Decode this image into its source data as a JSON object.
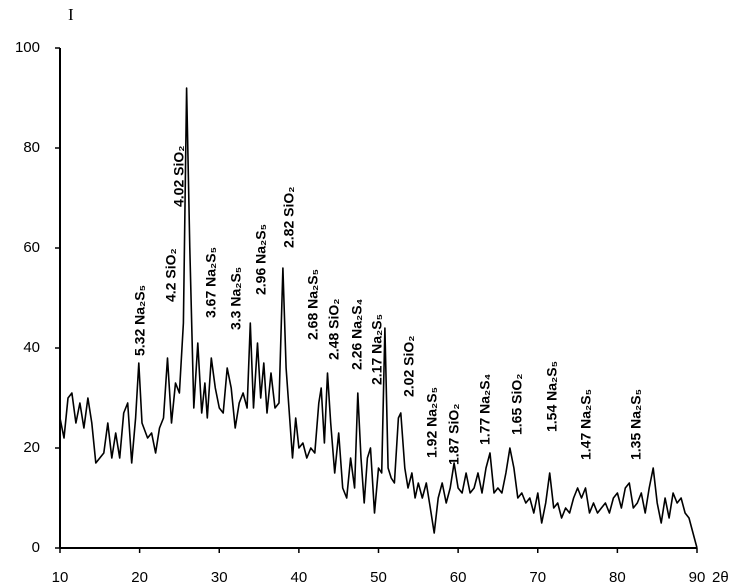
{
  "chart_data": {
    "type": "line",
    "y_label": "I",
    "x_label": "2θ",
    "xlim": [
      10,
      90
    ],
    "ylim": [
      0,
      100
    ],
    "xticks": [
      10,
      20,
      30,
      40,
      50,
      60,
      70,
      80,
      90
    ],
    "yticks": [
      0,
      20,
      40,
      60,
      80,
      100
    ],
    "grid": false,
    "x": [
      10,
      10.5,
      11,
      11.5,
      12,
      12.5,
      13,
      13.5,
      14,
      14.5,
      15,
      15.5,
      16,
      16.5,
      17,
      17.5,
      18,
      18.5,
      19,
      19.5,
      19.9,
      20.3,
      21,
      21.5,
      22,
      22.5,
      23,
      23.5,
      24,
      24.5,
      25,
      25.5,
      25.9,
      26.3,
      26.8,
      27.3,
      27.8,
      28.2,
      28.5,
      29,
      29.5,
      30,
      30.5,
      31,
      31.5,
      32,
      32.5,
      33,
      33.5,
      33.9,
      34.3,
      34.8,
      35.2,
      35.6,
      36,
      36.5,
      37,
      37.5,
      38,
      38.4,
      38.8,
      39.2,
      39.6,
      40,
      40.5,
      41,
      41.5,
      42,
      42.5,
      42.8,
      43.2,
      43.6,
      44,
      44.5,
      45,
      45.5,
      46,
      46.5,
      47,
      47.4,
      47.8,
      48.2,
      48.6,
      49,
      49.5,
      50,
      50.4,
      50.8,
      51.2,
      51.6,
      52,
      52.5,
      52.8,
      53.3,
      53.7,
      54.2,
      54.6,
      55,
      55.5,
      56,
      56.5,
      57,
      57.5,
      58,
      58.5,
      59,
      59.5,
      60,
      60.5,
      61,
      61.5,
      62,
      62.5,
      63,
      63.5,
      64,
      64.5,
      65,
      65.5,
      66,
      66.5,
      67,
      67.5,
      68,
      68.5,
      69,
      69.5,
      70,
      70.5,
      71,
      71.5,
      72,
      72.5,
      73,
      73.5,
      74,
      74.5,
      75,
      75.5,
      76,
      76.5,
      77,
      77.5,
      78,
      78.5,
      79,
      79.5,
      80,
      80.5,
      81,
      81.5,
      82,
      82.5,
      83,
      83.5,
      84,
      84.5,
      85,
      85.5,
      86,
      86.5,
      87,
      87.5,
      88,
      88.5,
      89,
      89.5,
      90
    ],
    "series": [
      {
        "name": "I",
        "color": "#000000",
        "values": [
          26,
          22,
          30,
          31,
          25,
          29,
          24,
          30,
          25,
          17,
          18,
          19,
          25,
          18,
          23,
          18,
          27,
          29,
          17,
          26,
          37,
          25,
          22,
          23,
          19,
          24,
          26,
          38,
          25,
          33,
          31,
          45,
          92,
          60,
          28,
          41,
          27,
          33,
          26,
          38,
          32,
          28,
          27,
          36,
          32,
          24,
          29,
          31,
          28,
          45,
          28,
          41,
          30,
          37,
          27,
          35,
          28,
          29,
          56,
          36,
          27,
          18,
          26,
          20,
          21,
          18,
          20,
          19,
          29,
          32,
          21,
          35,
          25,
          15,
          23,
          12,
          10,
          18,
          12,
          31,
          18,
          9,
          18,
          20,
          7,
          16,
          15,
          44,
          16,
          14,
          13,
          26,
          27,
          16,
          12,
          15,
          10,
          13,
          10,
          13,
          8,
          3,
          10,
          13,
          9,
          12,
          17,
          12,
          11,
          15,
          11,
          12,
          15,
          11,
          16,
          19,
          11,
          12,
          11,
          15,
          20,
          16,
          10,
          11,
          9,
          10,
          7,
          11,
          5,
          9,
          15,
          8,
          9,
          6,
          8,
          7,
          10,
          12,
          10,
          12,
          7,
          9,
          7,
          8,
          9,
          7,
          10,
          11,
          8,
          12,
          13,
          8,
          9,
          11,
          7,
          12,
          16,
          9,
          5,
          10,
          6,
          11,
          9,
          10,
          7,
          6,
          3,
          0
        ]
      }
    ],
    "annotations": [
      "5.32 Na₂S₅",
      "4.2 SiO₂",
      "4.02 SiO₂",
      "3.67 Na₂S₅",
      "3.3 Na₂S₅",
      "2.96 Na₂S₅",
      "2.82 SiO₂",
      "2.68 Na₂S₅",
      "2.48 SiO₂",
      "2.26 Na₂S₄",
      "2.17 Na₂S₅",
      "2.02 SiO₂",
      "1.92 Na₂S₅",
      "1.87 SiO₂",
      "1.77 Na₂S₄",
      "1.65 SiO₂",
      "1.54 Na₂S₅",
      "1.47 Na₂S₅",
      "1.35 Na₂S₅"
    ]
  }
}
